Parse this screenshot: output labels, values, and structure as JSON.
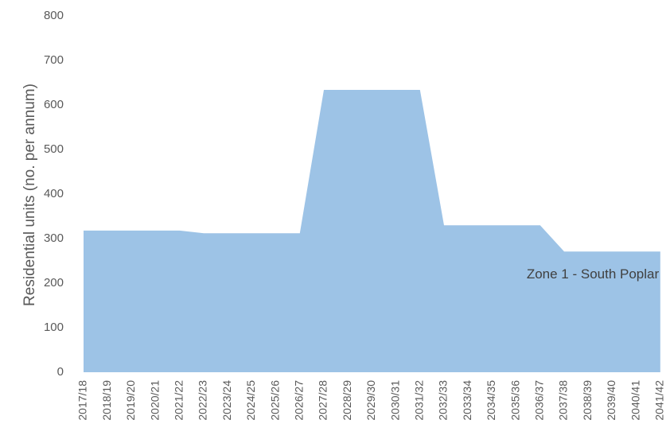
{
  "chart_data": {
    "type": "area",
    "y_label": "Residential units (no. per annum)",
    "annotation": "Zone 1 - South Poplar",
    "categories": [
      "2017/18",
      "2018/19",
      "2019/20",
      "2020/21",
      "2021/22",
      "2022/23",
      "2023/24",
      "2024/25",
      "2025/26",
      "2026/27",
      "2027/28",
      "2028/29",
      "2029/30",
      "2030/31",
      "2031/32",
      "2032/33",
      "2033/34",
      "2034/35",
      "2035/36",
      "2036/37",
      "2037/38",
      "2038/39",
      "2039/40",
      "2040/41",
      "2041/42"
    ],
    "values": [
      318,
      318,
      318,
      318,
      318,
      312,
      312,
      312,
      312,
      312,
      634,
      634,
      634,
      634,
      634,
      330,
      330,
      330,
      330,
      330,
      271,
      271,
      271,
      271,
      271
    ],
    "color": "#9dc3e6",
    "ylim": [
      0,
      800
    ],
    "yticks": [
      0,
      100,
      200,
      300,
      400,
      500,
      600,
      700,
      800
    ],
    "grid": false
  }
}
